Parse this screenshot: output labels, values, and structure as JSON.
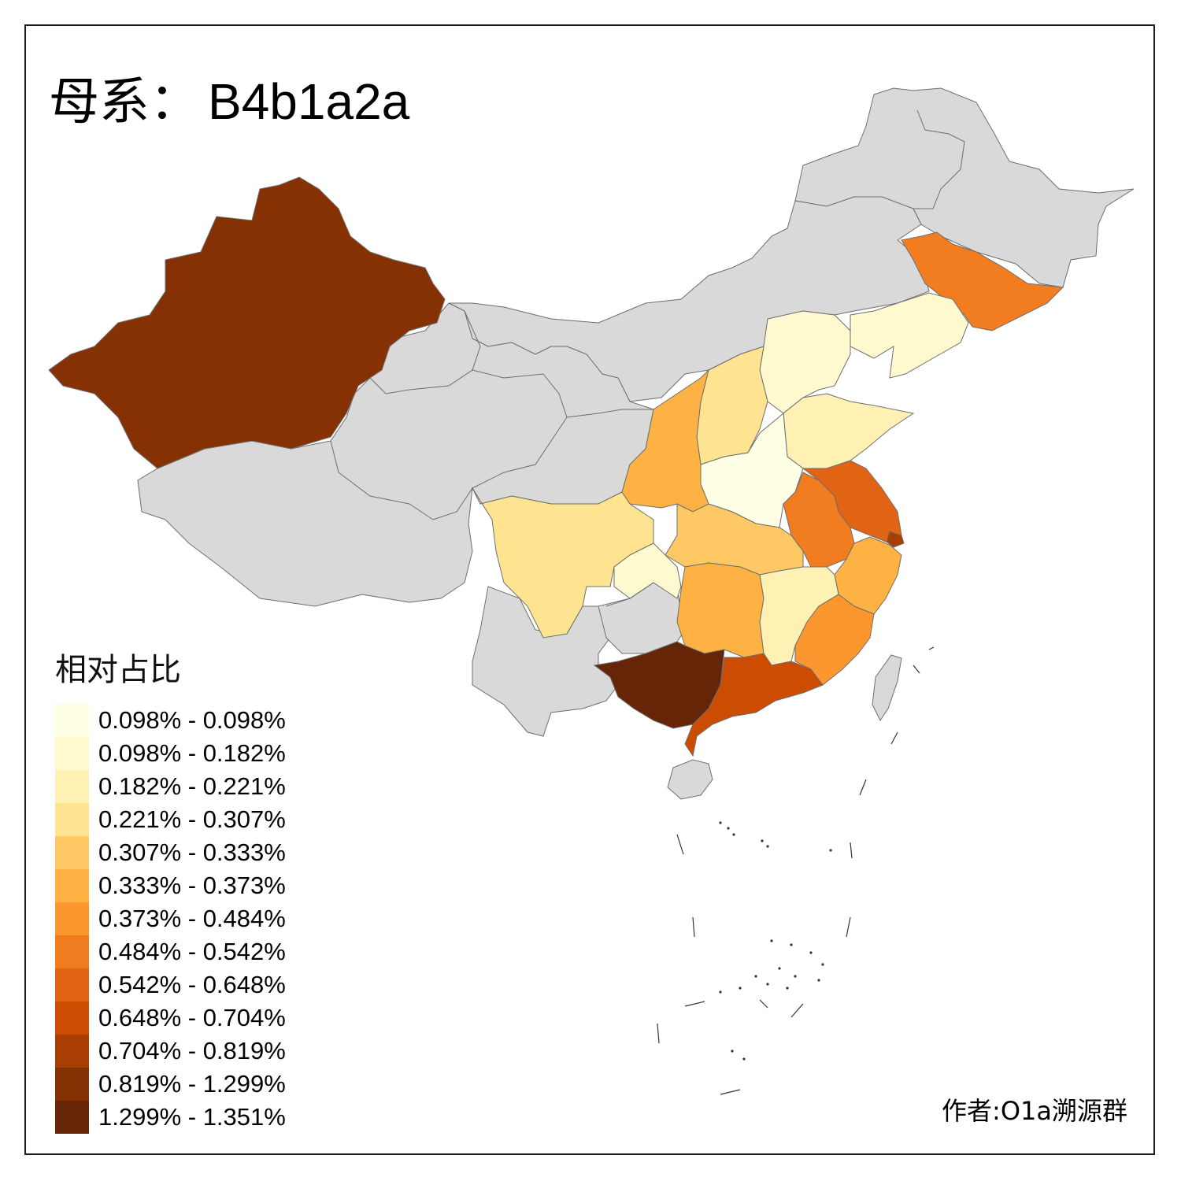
{
  "title": {
    "prefix": "母系：",
    "haplogroup": "B4b1a2a"
  },
  "legend": {
    "title": "相对占比",
    "bins": [
      {
        "label": "0.098% - 0.098%",
        "color": "#ffffe5"
      },
      {
        "label": "0.098% - 0.182%",
        "color": "#fff9d0"
      },
      {
        "label": "0.182% - 0.221%",
        "color": "#fff0b4"
      },
      {
        "label": "0.221% - 0.307%",
        "color": "#fee391"
      },
      {
        "label": "0.307% - 0.333%",
        "color": "#fec965"
      },
      {
        "label": "0.333% - 0.373%",
        "color": "#feb244"
      },
      {
        "label": "0.373% - 0.484%",
        "color": "#fb972e"
      },
      {
        "label": "0.484% - 0.542%",
        "color": "#f17d20"
      },
      {
        "label": "0.542% - 0.648%",
        "color": "#e06414"
      },
      {
        "label": "0.648% - 0.704%",
        "color": "#cc4c02"
      },
      {
        "label": "0.704% - 0.819%",
        "color": "#a93e03"
      },
      {
        "label": "0.819% - 1.299%",
        "color": "#863104"
      },
      {
        "label": "1.299% - 1.351%",
        "color": "#662506"
      }
    ]
  },
  "no_data_color": "#d9d9d9",
  "credit": "作者:O1a溯源群"
}
